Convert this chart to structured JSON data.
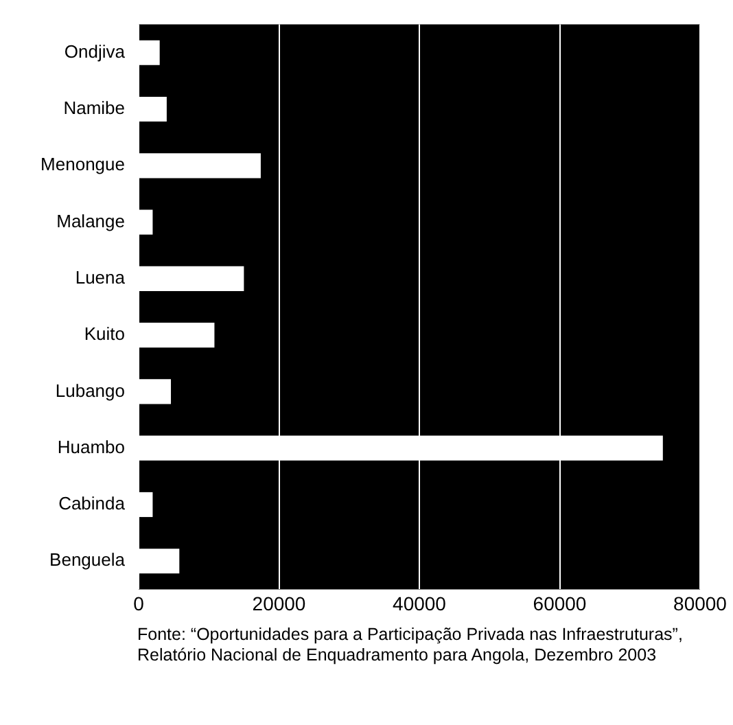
{
  "chart_data": {
    "type": "bar",
    "orientation": "horizontal",
    "categories": [
      "Ondjiva",
      "Namibe",
      "Menongue",
      "Malange",
      "Luena",
      "Kuito",
      "Lubango",
      "Huambo",
      "Cabinda",
      "Benguela"
    ],
    "values": [
      3000,
      4000,
      17400,
      2000,
      15000,
      10800,
      4600,
      74700,
      2000,
      5800
    ],
    "color": "#ffffff",
    "xlim": [
      0,
      80000
    ],
    "xticks": [
      0,
      20000,
      40000,
      60000,
      80000
    ],
    "grid": "x",
    "annotations": [
      "Fonte: “Oportunidades para a Participação Privada nas Infraestruturas”, Relatório Nacional de Enquadramento para Angola, Dezembro 2003"
    ]
  }
}
